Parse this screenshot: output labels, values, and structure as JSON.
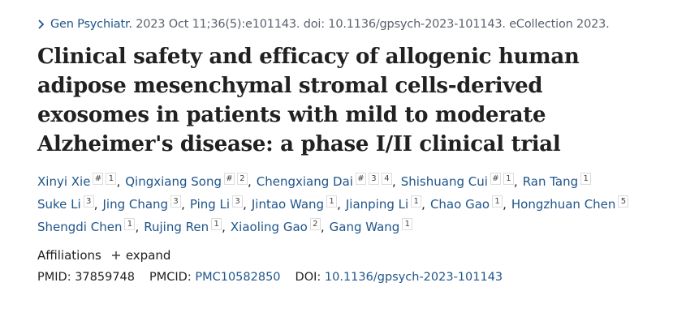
{
  "citation": {
    "journal": "Gen Psychiatr.",
    "details": "2023 Oct 11;36(5):e101143. doi: 10.1136/gpsych-2023-101143. eCollection 2023."
  },
  "title": "Clinical safety and efficacy of allogenic human adipose mesenchymal stromal cells-derived exosomes in patients with mild to moderate Alzheimer's disease: a phase I/II clinical trial",
  "authors": [
    [
      {
        "name": "Xinyi Xie",
        "marks": [
          "#",
          "1"
        ]
      },
      {
        "name": "Qingxiang Song",
        "marks": [
          "#",
          "2"
        ]
      },
      {
        "name": "Chengxiang Dai",
        "marks": [
          "#",
          "3",
          "4"
        ]
      },
      {
        "name": "Shishuang Cui",
        "marks": [
          "#",
          "1"
        ]
      },
      {
        "name": "Ran Tang",
        "marks": [
          "1"
        ]
      }
    ],
    [
      {
        "name": "Suke Li",
        "marks": [
          "3"
        ]
      },
      {
        "name": "Jing Chang",
        "marks": [
          "3"
        ]
      },
      {
        "name": "Ping Li",
        "marks": [
          "3"
        ]
      },
      {
        "name": "Jintao Wang",
        "marks": [
          "1"
        ]
      },
      {
        "name": "Jianping Li",
        "marks": [
          "1"
        ]
      },
      {
        "name": "Chao Gao",
        "marks": [
          "1"
        ]
      },
      {
        "name": "Hongzhuan Chen",
        "marks": [
          "5"
        ]
      }
    ],
    [
      {
        "name": "Shengdi Chen",
        "marks": [
          "1"
        ]
      },
      {
        "name": "Rujing Ren",
        "marks": [
          "1"
        ]
      },
      {
        "name": "Xiaoling Gao",
        "marks": [
          "2"
        ]
      },
      {
        "name": "Gang Wang",
        "marks": [
          "1"
        ]
      }
    ]
  ],
  "affiliations": {
    "label": "Affiliations",
    "action": "expand"
  },
  "identifiers": [
    {
      "label": "PMID:",
      "value": "37859748",
      "link": false
    },
    {
      "label": "PMCID:",
      "value": "PMC10582850",
      "link": true
    },
    {
      "label": "DOI:",
      "value": "10.1136/gpsych-2023-101143",
      "link": true
    }
  ]
}
